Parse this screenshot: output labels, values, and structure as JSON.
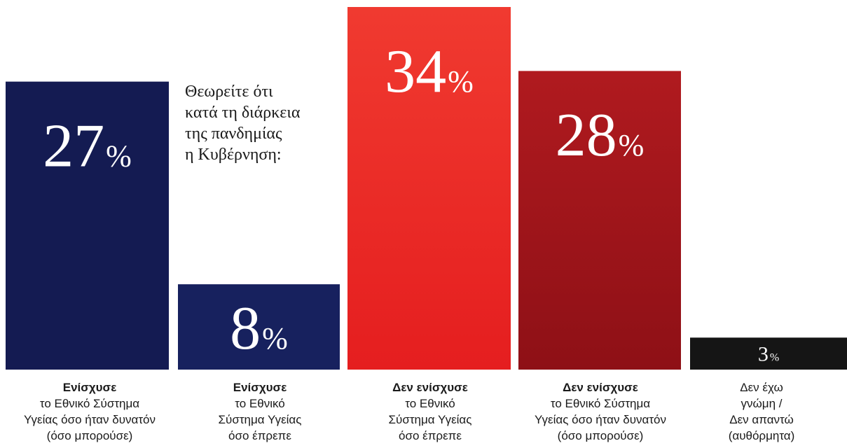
{
  "chart_data": {
    "type": "bar",
    "title": "",
    "question_lines": [
      "Θεωρείτε ότι",
      "κατά τη διάρκεια",
      "της πανδημίας",
      "η Κυβέρνηση:"
    ],
    "ylim": [
      0,
      34
    ],
    "grid": false,
    "legend": "none",
    "categories": [
      {
        "bold": "Ενίσχυσε",
        "lines": [
          "το Εθνικό Σύστημα",
          "Υγείας όσο ήταν δυνατόν",
          "(όσο μπορούσε)"
        ]
      },
      {
        "bold": "Ενίσχυσε",
        "lines": [
          "το Εθνικό",
          "Σύστημα Υγείας",
          "όσο έπρεπε"
        ]
      },
      {
        "bold": "Δεν ενίσχυσε",
        "lines": [
          "το Εθνικό",
          "Σύστημα Υγείας",
          "όσο έπρεπε"
        ]
      },
      {
        "bold": "Δεν ενίσχυσε",
        "lines": [
          "το Εθνικό Σύστημα",
          "Υγείας όσο ήταν δυνατόν",
          "(όσο μπορούσε)"
        ]
      },
      {
        "bold": "",
        "lines": [
          "Δεν έχω",
          "γνώμη /",
          "Δεν απαντώ",
          "(αυθόρμητα)"
        ]
      }
    ],
    "values": [
      27,
      8,
      34,
      28,
      3
    ],
    "value_labels": [
      "27",
      "8",
      "34",
      "28",
      "3"
    ],
    "percent_sign": "%",
    "colors": [
      "#141b52",
      "#17215e",
      "#ee2a24",
      "#a5161b",
      "#151515"
    ]
  }
}
